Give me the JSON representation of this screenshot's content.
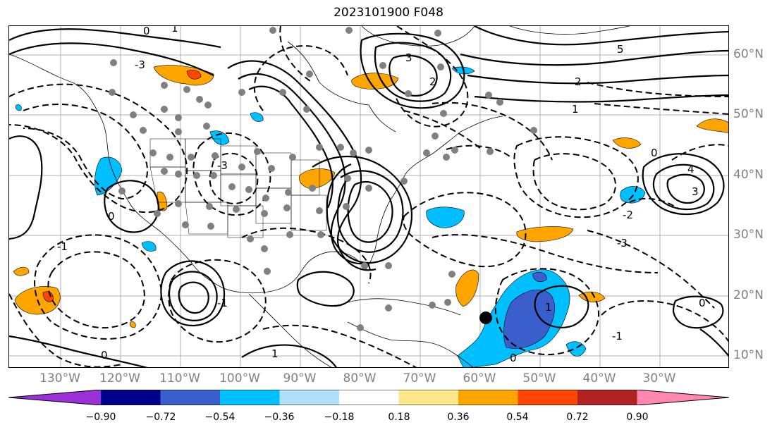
{
  "title": "2023101900 F048",
  "lon_labels": [
    "130°W",
    "120°W",
    "110°W",
    "100°W",
    "90°W",
    "80°W",
    "70°W",
    "60°W",
    "50°W",
    "40°W",
    "30°W"
  ],
  "lat_labels": [
    "60°N",
    "50°N",
    "40°N",
    "30°N",
    "20°N",
    "10°N"
  ],
  "contour_labels": [
    "5",
    "4",
    "3",
    "2",
    "1",
    "0",
    "-1",
    "-2",
    "-3"
  ],
  "colorbar": {
    "tick_labels": [
      "−0.90",
      "−0.72",
      "−0.54",
      "−0.36",
      "−0.18",
      "0.18",
      "0.36",
      "0.54",
      "0.72",
      "0.90"
    ],
    "colors": [
      "#9b30d9",
      "#00008b",
      "#3a5fcd",
      "#00bfff",
      "#b0e0f8",
      "#ffffff",
      "#ffe88c",
      "#ffa500",
      "#ff4500",
      "#b22222",
      "#ff88b0"
    ]
  },
  "colors": {
    "positive_shading": "#ffa500",
    "negative_shading": "#00bfff",
    "strong_negative": "#3a5fcd",
    "stations": "#808080",
    "grid": "#b0b0b0"
  },
  "markers": {
    "storm_center": "black-dot"
  }
}
